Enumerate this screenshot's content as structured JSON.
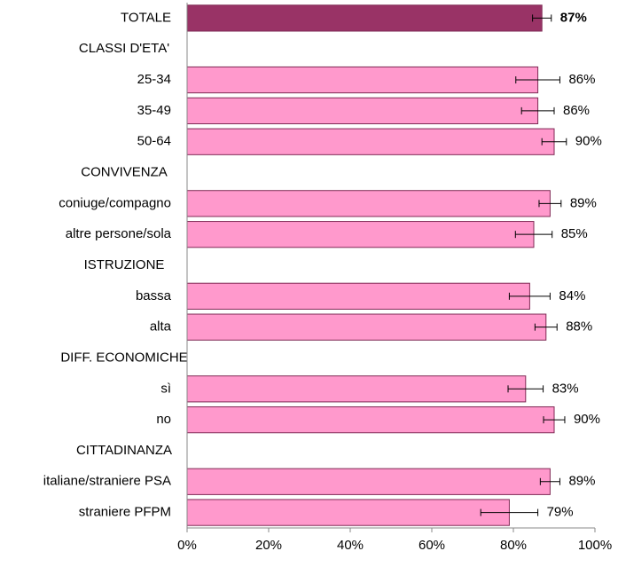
{
  "chart_data": {
    "type": "barh",
    "categories": [
      "TOTALE",
      "CLASSI D'ETA'",
      "25-34",
      "35-49",
      "50-64",
      "CONVIVENZA",
      "coniuge/compagno",
      "altre persone/sola",
      "ISTRUZIONE",
      "bassa",
      "alta",
      "DIFF. ECONOMICHE",
      "sì",
      "no",
      "CITTADINANZA",
      "italiane/straniere PSA",
      "straniere PFPM"
    ],
    "values": [
      87,
      null,
      86,
      86,
      90,
      null,
      89,
      85,
      null,
      84,
      88,
      null,
      83,
      90,
      null,
      89,
      79
    ],
    "value_labels": [
      "87%",
      null,
      "86%",
      "86%",
      "90%",
      null,
      "89%",
      "85%",
      null,
      "84%",
      "88%",
      null,
      "83%",
      "90%",
      null,
      "89%",
      "79%"
    ],
    "errors": [
      2.3,
      null,
      5.4,
      4,
      3,
      null,
      2.7,
      4.5,
      null,
      5,
      2.7,
      null,
      4.3,
      2.6,
      null,
      2.4,
      7
    ],
    "colors": [
      "#993366",
      null,
      "#ff99cc",
      "#ff99cc",
      "#ff99cc",
      null,
      "#ff99cc",
      "#ff99cc",
      null,
      "#ff99cc",
      "#ff99cc",
      null,
      "#ff99cc",
      "#ff99cc",
      null,
      "#ff99cc",
      "#ff99cc"
    ],
    "xlim": [
      0,
      100
    ],
    "xticks": [
      {
        "value": 0,
        "label": "0%"
      },
      {
        "value": 20,
        "label": "20%"
      },
      {
        "value": 40,
        "label": "40%"
      },
      {
        "value": 60,
        "label": "60%"
      },
      {
        "value": 80,
        "label": "80%"
      },
      {
        "value": 100,
        "label": "100%"
      }
    ]
  }
}
